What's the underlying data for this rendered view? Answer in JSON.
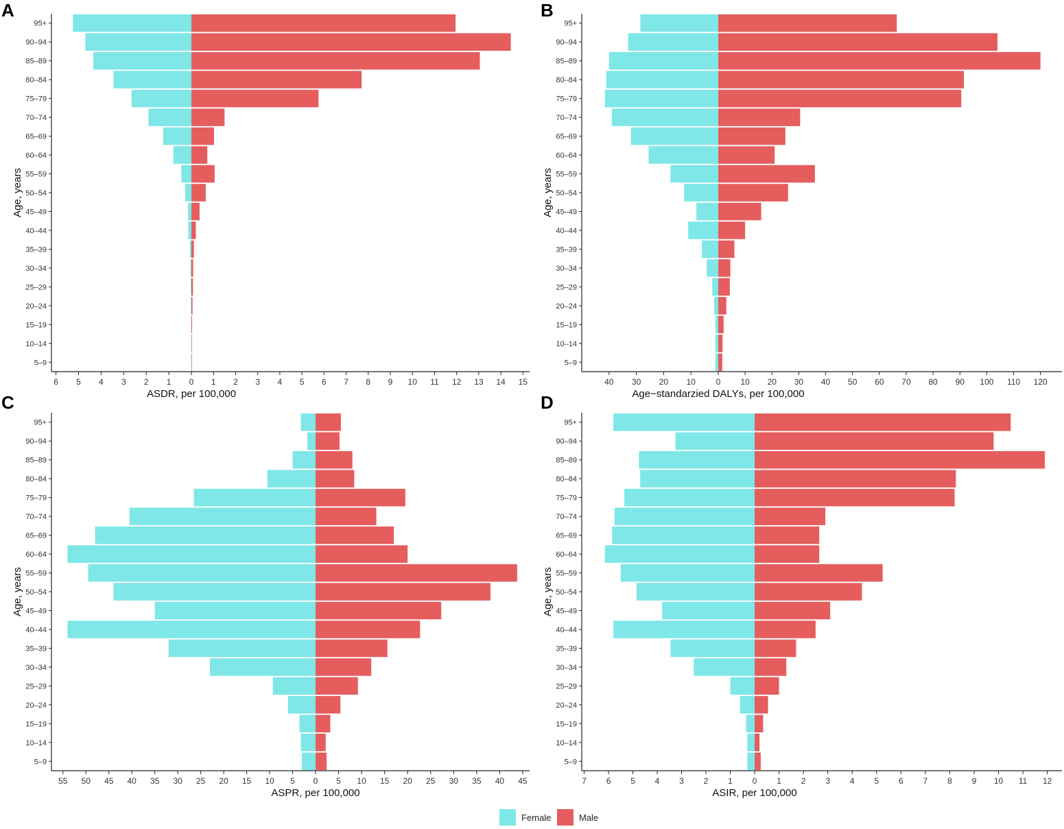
{
  "colors": {
    "female": "#7fe7e7",
    "male": "#e55d5d"
  },
  "legend": {
    "female_label": "Female",
    "male_label": "Male"
  },
  "age_groups": [
    "95+",
    "90–94",
    "85–89",
    "80–84",
    "75–79",
    "70–74",
    "65–69",
    "60–64",
    "55–59",
    "50–54",
    "45–49",
    "40–44",
    "35–39",
    "30–34",
    "25–29",
    "20–24",
    "15–19",
    "10–14",
    "5–9"
  ],
  "chart_data": [
    {
      "panel": "A",
      "type": "bar",
      "orientation": "population-pyramid",
      "xlabel": "ASDR, per 100,000",
      "ylabel": "Age, years",
      "xlim_female": 6.2,
      "xlim_male": 15.3,
      "ticks_female": [
        1,
        2,
        3,
        4,
        5,
        6
      ],
      "ticks_male": [
        0,
        1,
        2,
        3,
        4,
        5,
        6,
        7,
        8,
        9,
        10,
        11,
        12,
        13,
        14,
        15
      ],
      "female": [
        5.25,
        4.7,
        4.35,
        3.45,
        2.65,
        1.9,
        1.25,
        0.8,
        0.45,
        0.28,
        0.15,
        0.14,
        0.06,
        0.04,
        0.03,
        0.02,
        0.01,
        0.01,
        0.01
      ],
      "male": [
        11.95,
        14.45,
        13.05,
        7.7,
        5.75,
        1.5,
        1.02,
        0.72,
        1.05,
        0.65,
        0.37,
        0.2,
        0.11,
        0.08,
        0.07,
        0.05,
        0.03,
        0.02,
        0.02
      ]
    },
    {
      "panel": "B",
      "type": "bar",
      "orientation": "population-pyramid",
      "xlabel": "Age−standarzied DALYs, per 100,000",
      "ylabel": "Age, years",
      "xlim_female": 50,
      "xlim_male": 128,
      "ticks_female": [
        10,
        20,
        30,
        40
      ],
      "ticks_male": [
        0,
        10,
        20,
        30,
        40,
        50,
        60,
        70,
        80,
        90,
        100,
        110,
        120
      ],
      "female": [
        28.5,
        33,
        40,
        41,
        41.5,
        39,
        32,
        25.5,
        17.5,
        12.5,
        8,
        11,
        6,
        4.2,
        2.2,
        1.5,
        1,
        1,
        1
      ],
      "male": [
        66.5,
        104,
        120,
        91.5,
        90.5,
        30.5,
        25,
        21,
        36,
        26,
        16,
        10,
        6,
        4.5,
        4.3,
        3,
        2,
        1.6,
        1.5
      ]
    },
    {
      "panel": "C",
      "type": "bar",
      "orientation": "population-pyramid",
      "xlabel": "ASPR, per 100,000",
      "ylabel": "Age, years",
      "xlim_female": 57.5,
      "xlim_male": 46.5,
      "ticks_female": [
        5,
        10,
        15,
        20,
        25,
        30,
        35,
        40,
        45,
        50,
        55
      ],
      "ticks_male": [
        0,
        5,
        10,
        15,
        20,
        25,
        30,
        35,
        40,
        45
      ],
      "female": [
        3.2,
        1.8,
        5,
        10.5,
        26.5,
        40.5,
        48,
        54,
        49.5,
        44,
        35,
        54,
        32,
        23,
        9.3,
        6,
        3.5,
        3.2,
        3
      ],
      "male": [
        5.5,
        5.2,
        8,
        8.4,
        19.5,
        13.2,
        17,
        20,
        43.8,
        38,
        27.3,
        22.7,
        15.6,
        12.1,
        9.2,
        5.4,
        3.2,
        2.2,
        2.4
      ]
    },
    {
      "panel": "D",
      "type": "bar",
      "orientation": "population-pyramid",
      "xlabel": "ASIR, per 100,000",
      "ylabel": "Age, years",
      "xlim_female": 7.1,
      "xlim_male": 12.6,
      "ticks_female": [
        1,
        2,
        3,
        4,
        5,
        6,
        7
      ],
      "ticks_male": [
        0,
        1,
        2,
        3,
        4,
        5,
        6,
        7,
        8,
        9,
        10,
        11,
        12
      ],
      "female": [
        5.8,
        3.25,
        4.75,
        4.7,
        5.35,
        5.75,
        5.85,
        6.15,
        5.5,
        4.85,
        3.8,
        5.8,
        3.45,
        2.5,
        1,
        0.6,
        0.35,
        0.3,
        0.3
      ],
      "male": [
        10.5,
        9.8,
        11.9,
        8.25,
        8.2,
        2.9,
        2.65,
        2.65,
        5.25,
        4.4,
        3.1,
        2.5,
        1.7,
        1.3,
        1,
        0.55,
        0.35,
        0.2,
        0.25
      ]
    }
  ]
}
